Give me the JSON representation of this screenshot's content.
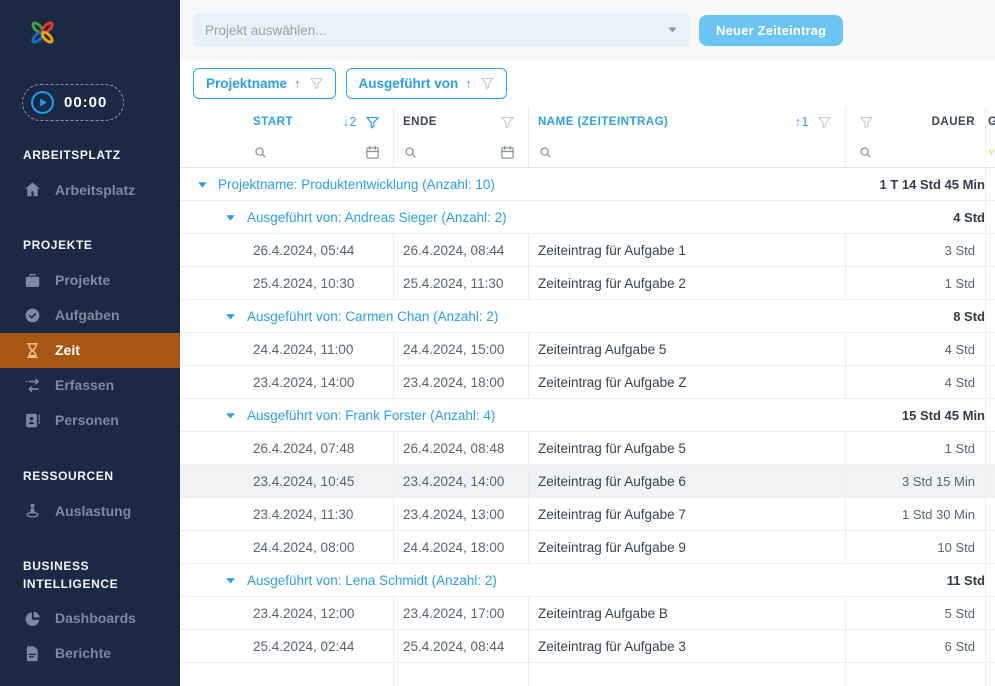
{
  "colors": {
    "sidebar_bg": "#1c2945",
    "accent_blue": "#2b9fe8",
    "active_item_orange": "#a85614",
    "button_blue": "#6cc4f2",
    "timer_play_blue": "#1e9bf0",
    "highlighted_row_bg": "#f1f2f3"
  },
  "sidebar": {
    "timer_value": "00:00",
    "sections": [
      {
        "title": "ARBEITSPLATZ",
        "items": [
          {
            "id": "arbeitsplatz",
            "label": "Arbeitsplatz",
            "icon": "home-icon",
            "active": false
          }
        ]
      },
      {
        "title": "PROJEKTE",
        "items": [
          {
            "id": "projekte",
            "label": "Projekte",
            "icon": "briefcase-icon",
            "active": false
          },
          {
            "id": "aufgaben",
            "label": "Aufgaben",
            "icon": "check-circle-icon",
            "active": false
          },
          {
            "id": "zeit",
            "label": "Zeit",
            "icon": "hourglass-icon",
            "active": true
          },
          {
            "id": "erfassen",
            "label": "Erfassen",
            "icon": "swap-arrows-icon",
            "active": false
          },
          {
            "id": "personen",
            "label": "Personen",
            "icon": "person-badge-icon",
            "active": false
          }
        ]
      },
      {
        "title": "RESSOURCEN",
        "items": [
          {
            "id": "auslastung",
            "label": "Auslastung",
            "icon": "person-pin-icon",
            "active": false
          }
        ]
      },
      {
        "title": "BUSINESS INTELLIGENCE",
        "items": [
          {
            "id": "dashboards",
            "label": "Dashboards",
            "icon": "pie-chart-icon",
            "active": false
          },
          {
            "id": "berichte",
            "label": "Berichte",
            "icon": "report-icon",
            "active": false
          }
        ]
      }
    ]
  },
  "topbar": {
    "project_select_placeholder": "Projekt auswählen...",
    "new_entry_label": "Neuer Zeiteintrag"
  },
  "grouping_chips": [
    {
      "label": "Projektname",
      "sort_arrow": "↑"
    },
    {
      "label": "Ausgeführt von",
      "sort_arrow": "↑"
    }
  ],
  "table": {
    "clipped_column_fragment": "G",
    "columns": [
      {
        "key": "start",
        "label": "START",
        "sort_indicator": "↓2",
        "sorted": true
      },
      {
        "key": "end",
        "label": "ENDE",
        "sort_indicator": "",
        "sorted": false
      },
      {
        "key": "name",
        "label": "NAME (ZEITEINTRAG)",
        "sort_indicator": "↑1",
        "sorted": true
      },
      {
        "key": "duration",
        "label": "DAUER",
        "sort_indicator": "",
        "sorted": false
      }
    ],
    "rows": [
      {
        "type": "group",
        "level": 1,
        "label": "Projektname: Produktentwicklung (Anzahl: 10)",
        "duration": "1 T 14 Std 45 Min"
      },
      {
        "type": "group",
        "level": 2,
        "label": "Ausgeführt von: Andreas Sieger (Anzahl: 2)",
        "duration": "4 Std"
      },
      {
        "type": "entry",
        "start": "26.4.2024, 05:44",
        "end": "26.4.2024, 08:44",
        "name": "Zeiteintrag für Aufgabe 1",
        "duration": "3 Std",
        "highlighted": false
      },
      {
        "type": "entry",
        "start": "25.4.2024, 10:30",
        "end": "25.4.2024, 11:30",
        "name": "Zeiteintrag für Aufgabe 2",
        "duration": "1 Std",
        "highlighted": false
      },
      {
        "type": "group",
        "level": 2,
        "label": "Ausgeführt von: Carmen Chan (Anzahl: 2)",
        "duration": "8 Std"
      },
      {
        "type": "entry",
        "start": "24.4.2024, 11:00",
        "end": "24.4.2024, 15:00",
        "name": "Zeiteintrag Aufgabe 5",
        "duration": "4 Std",
        "highlighted": false
      },
      {
        "type": "entry",
        "start": "23.4.2024, 14:00",
        "end": "23.4.2024, 18:00",
        "name": "Zeiteintrag für Aufgabe Z",
        "duration": "4 Std",
        "highlighted": false
      },
      {
        "type": "group",
        "level": 2,
        "label": "Ausgeführt von: Frank Forster (Anzahl: 4)",
        "duration": "15 Std 45 Min"
      },
      {
        "type": "entry",
        "start": "26.4.2024, 07:48",
        "end": "26.4.2024, 08:48",
        "name": "Zeiteintrag für Aufgabe 5",
        "duration": "1 Std",
        "highlighted": false
      },
      {
        "type": "entry",
        "start": "23.4.2024, 10:45",
        "end": "23.4.2024, 14:00",
        "name": "Zeiteintrag für Aufgabe 6",
        "duration": "3 Std 15 Min",
        "highlighted": true
      },
      {
        "type": "entry",
        "start": "23.4.2024, 11:30",
        "end": "23.4.2024, 13:00",
        "name": "Zeiteintrag für Aufgabe 7",
        "duration": "1 Std 30 Min",
        "highlighted": false
      },
      {
        "type": "entry",
        "start": "24.4.2024, 08:00",
        "end": "24.4.2024, 18:00",
        "name": "Zeiteintrag für Aufgabe 9",
        "duration": "10 Std",
        "highlighted": false
      },
      {
        "type": "group",
        "level": 2,
        "label": "Ausgeführt von: Lena Schmidt (Anzahl: 2)",
        "duration": "11 Std"
      },
      {
        "type": "entry",
        "start": "23.4.2024, 12:00",
        "end": "23.4.2024, 17:00",
        "name": "Zeiteintrag Aufgabe B",
        "duration": "5 Std",
        "highlighted": false
      },
      {
        "type": "entry",
        "start": "25.4.2024, 02:44",
        "end": "25.4.2024, 08:44",
        "name": "Zeiteintrag für Aufgabe 3",
        "duration": "6 Std",
        "highlighted": false
      }
    ]
  }
}
